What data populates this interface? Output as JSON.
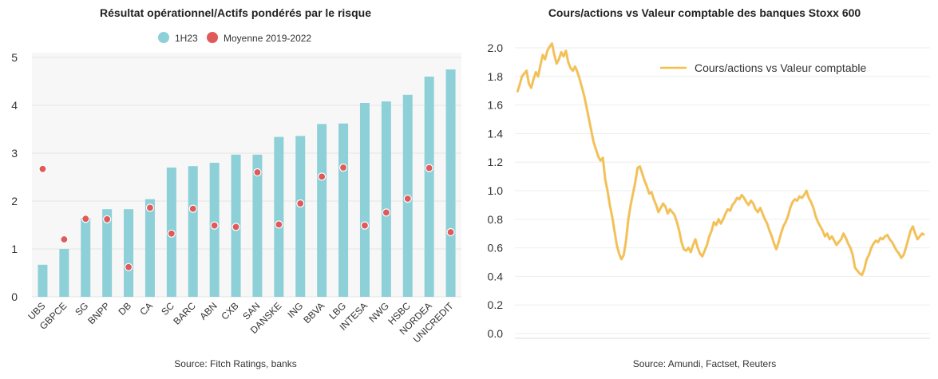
{
  "left": {
    "title": "Résultat opérationnel/Actifs pondérés par le risque",
    "source": "Source: Fitch Ratings, banks"
  },
  "right": {
    "title": "Cours/actions vs Valeur comptable des banques Stoxx 600",
    "source": "Source: Amundi, Factset, Reuters"
  },
  "chart_data": [
    {
      "type": "bar",
      "title": "Résultat opérationnel/Actifs pondérés par le risque",
      "categories": [
        "UBS",
        "GBPCE",
        "SG",
        "BNPP",
        "DB",
        "CA",
        "SC",
        "BARC",
        "ABN",
        "CXB",
        "SAN",
        "DANSKE",
        "ING",
        "BBVA",
        "LBG",
        "INTESA",
        "NWG",
        "HSBC",
        "NORDEA",
        "UNICREDIT"
      ],
      "series": [
        {
          "name": "1H23",
          "kind": "bar",
          "color": "#8dd0d8",
          "values": [
            0.67,
            1.0,
            1.65,
            1.83,
            1.83,
            2.04,
            2.7,
            2.73,
            2.8,
            2.97,
            2.97,
            3.34,
            3.36,
            3.61,
            3.62,
            4.05,
            4.08,
            4.22,
            4.6,
            4.75
          ]
        },
        {
          "name": "Moyenne 2019-2022",
          "kind": "dot",
          "color": "#e05a5a",
          "values": [
            2.67,
            1.2,
            1.63,
            1.62,
            0.62,
            1.86,
            1.32,
            1.84,
            1.49,
            1.46,
            2.6,
            1.51,
            1.95,
            2.51,
            2.7,
            1.49,
            1.76,
            2.05,
            2.69,
            1.35
          ]
        }
      ],
      "ylim": [
        0,
        5
      ],
      "yticks": [
        0,
        1,
        2,
        3,
        4,
        5
      ],
      "source": "Source: Fitch Ratings, banks"
    },
    {
      "type": "line",
      "title": "Cours/actions vs Valeur comptable des banques Stoxx 600",
      "legend": "Cours/actions vs Valeur comptable",
      "color": "#f5c04a",
      "ylim": [
        0.0,
        2.0
      ],
      "yticks": [
        0.0,
        0.2,
        0.4,
        0.6,
        0.8,
        1.0,
        1.2,
        1.4,
        1.6,
        1.8,
        2.0
      ],
      "values": [
        1.69,
        1.74,
        1.8,
        1.82,
        1.84,
        1.75,
        1.72,
        1.78,
        1.83,
        1.8,
        1.88,
        1.95,
        1.92,
        1.98,
        2.01,
        2.03,
        1.95,
        1.89,
        1.92,
        1.97,
        1.94,
        1.98,
        1.9,
        1.86,
        1.84,
        1.87,
        1.83,
        1.78,
        1.72,
        1.66,
        1.58,
        1.5,
        1.42,
        1.34,
        1.29,
        1.24,
        1.21,
        1.23,
        1.08,
        1.0,
        0.9,
        0.82,
        0.72,
        0.62,
        0.56,
        0.52,
        0.55,
        0.65,
        0.8,
        0.9,
        0.98,
        1.06,
        1.16,
        1.17,
        1.12,
        1.07,
        1.03,
        0.98,
        0.99,
        0.94,
        0.9,
        0.85,
        0.88,
        0.91,
        0.89,
        0.84,
        0.87,
        0.85,
        0.83,
        0.78,
        0.72,
        0.64,
        0.59,
        0.58,
        0.6,
        0.57,
        0.62,
        0.66,
        0.6,
        0.56,
        0.54,
        0.58,
        0.62,
        0.68,
        0.72,
        0.78,
        0.76,
        0.8,
        0.77,
        0.8,
        0.84,
        0.87,
        0.86,
        0.9,
        0.92,
        0.95,
        0.94,
        0.97,
        0.95,
        0.92,
        0.9,
        0.93,
        0.91,
        0.87,
        0.85,
        0.88,
        0.84,
        0.8,
        0.77,
        0.72,
        0.68,
        0.63,
        0.59,
        0.64,
        0.7,
        0.75,
        0.78,
        0.82,
        0.88,
        0.92,
        0.94,
        0.93,
        0.96,
        0.95,
        0.97,
        1.0,
        0.95,
        0.92,
        0.88,
        0.82,
        0.78,
        0.75,
        0.72,
        0.68,
        0.7,
        0.66,
        0.68,
        0.65,
        0.62,
        0.64,
        0.66,
        0.7,
        0.67,
        0.63,
        0.6,
        0.55,
        0.46,
        0.44,
        0.42,
        0.41,
        0.45,
        0.52,
        0.55,
        0.6,
        0.63,
        0.65,
        0.64,
        0.67,
        0.66,
        0.68,
        0.69,
        0.66,
        0.64,
        0.61,
        0.58,
        0.56,
        0.53,
        0.55,
        0.6,
        0.66,
        0.72,
        0.75,
        0.7,
        0.66,
        0.68,
        0.7,
        0.69
      ]
    }
  ]
}
